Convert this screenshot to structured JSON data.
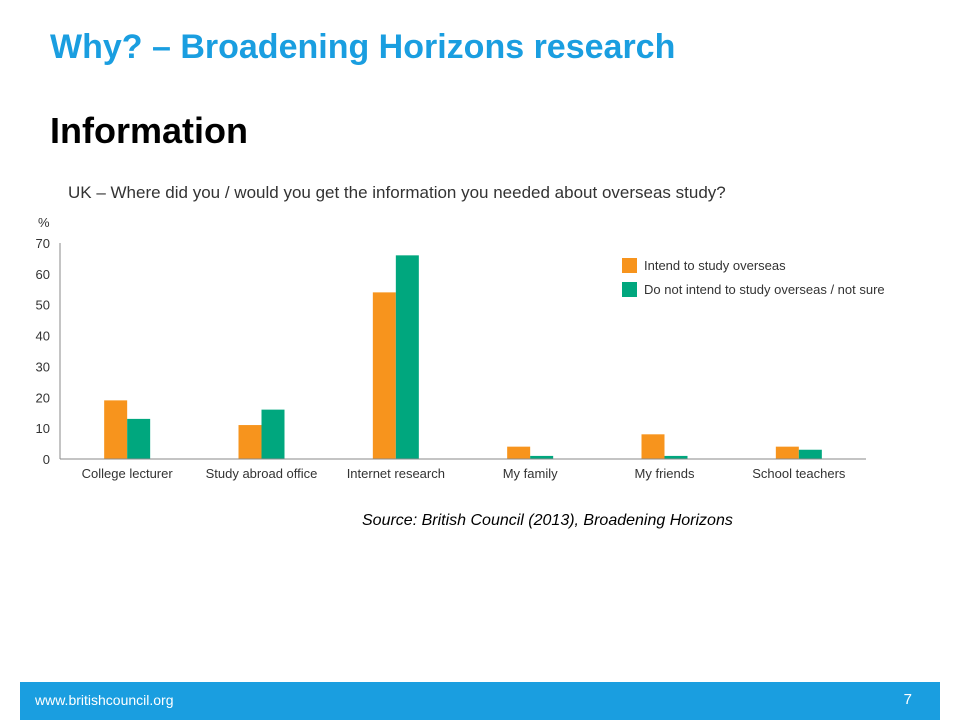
{
  "slide": {
    "title": "Why? – Broadening Horizons research",
    "subtitle": "Information",
    "source": "Source: British Council (2013), Broadening Horizons",
    "footer_url": "www.britishcouncil.org",
    "page_number": "7"
  },
  "colors": {
    "accent": "#1a9ee0",
    "series_intend": "#f7941d",
    "series_not_intend": "#00a77e",
    "axis_text": "#333333"
  },
  "chart_data": {
    "type": "bar",
    "title": "UK – Where did you / would you get the information you needed about overseas study?",
    "ylabel": "%",
    "ylim": [
      0,
      70
    ],
    "yticks": [
      0,
      10,
      20,
      30,
      40,
      50,
      60,
      70
    ],
    "grid": false,
    "legend_position": "top-right",
    "categories": [
      "College lecturer",
      "Study abroad office",
      "Internet research",
      "My family",
      "My friends",
      "School teachers"
    ],
    "series": [
      {
        "name": "Intend to study overseas",
        "color": "#f7941d",
        "values": [
          19,
          11,
          54,
          4,
          8,
          4
        ]
      },
      {
        "name": "Do not intend to study overseas / not sure",
        "color": "#00a77e",
        "values": [
          13,
          16,
          66,
          1,
          1,
          3
        ]
      }
    ]
  }
}
